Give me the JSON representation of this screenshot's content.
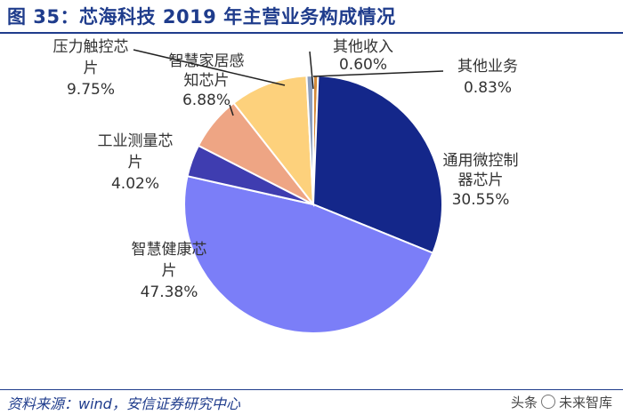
{
  "title": "图 35：芯海科技 2019 年主营业务构成情况",
  "source": "资料来源：wind，安信证券研究中心",
  "watermark": {
    "prefix": "头条",
    "name": "未来智库"
  },
  "chart_data": {
    "type": "pie",
    "start_angle_deg": 90,
    "direction": "clockwise",
    "slices": [
      {
        "name": "其他收入",
        "value": 0.6,
        "label_lines": [
          "其他收入",
          "0.60%"
        ],
        "color": "#d48a3a"
      },
      {
        "name": "通用微控制器芯片",
        "value": 30.55,
        "label_lines": [
          "通用微控制",
          "器芯片",
          "30.55%"
        ],
        "color": "#14278a"
      },
      {
        "name": "智慧健康芯片",
        "value": 47.38,
        "label_lines": [
          "智慧健康芯",
          "片",
          "47.38%"
        ],
        "color": "#7b7ef8"
      },
      {
        "name": "工业测量芯片",
        "value": 4.02,
        "label_lines": [
          "工业测量芯",
          "片",
          "4.02%"
        ],
        "color": "#3f3db0"
      },
      {
        "name": "智慧家居感知芯片",
        "value": 6.88,
        "label_lines": [
          "智慧家居感",
          "知芯片",
          "6.88%"
        ],
        "color": "#eea584"
      },
      {
        "name": "压力触控芯片",
        "value": 9.75,
        "label_lines": [
          "压力触控芯",
          "片",
          "9.75%"
        ],
        "color": "#fdd17c"
      },
      {
        "name": "其他业务",
        "value": 0.83,
        "label_lines": [
          "其他业务",
          "0.83%"
        ],
        "color": "#8d9fbd"
      }
    ]
  }
}
